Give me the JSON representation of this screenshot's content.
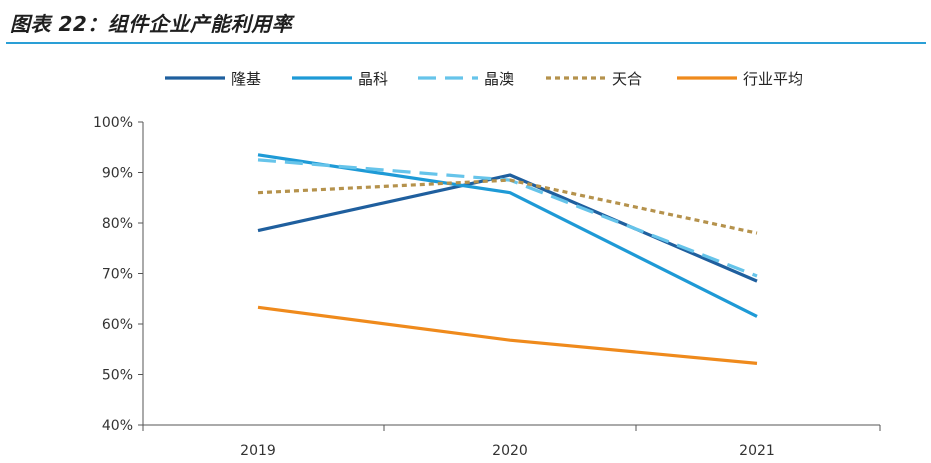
{
  "header": {
    "title": "图表 22：组件企业产能利用率"
  },
  "chart_data": {
    "type": "line",
    "x": [
      "2019",
      "2020",
      "2021"
    ],
    "ylim": [
      0.4,
      1.0
    ],
    "yticks": [
      "40%",
      "50%",
      "60%",
      "70%",
      "80%",
      "90%",
      "100%"
    ],
    "grid": false,
    "legend_position": "top",
    "series": [
      {
        "name": "隆基",
        "values": [
          0.785,
          0.895,
          0.685
        ],
        "color": "#1f5f9e",
        "dash": "solid"
      },
      {
        "name": "晶科",
        "values": [
          0.935,
          0.86,
          0.615
        ],
        "color": "#1e9ad6",
        "dash": "solid"
      },
      {
        "name": "晶澳",
        "values": [
          0.925,
          0.885,
          0.695
        ],
        "color": "#66c4ea",
        "dash": "dashed"
      },
      {
        "name": "天合",
        "values": [
          0.86,
          0.885,
          0.78
        ],
        "color": "#b5924c",
        "dash": "dotted"
      },
      {
        "name": "行业平均",
        "values": [
          0.633,
          0.568,
          0.522
        ],
        "color": "#ef8a1c",
        "dash": "solid"
      }
    ]
  }
}
